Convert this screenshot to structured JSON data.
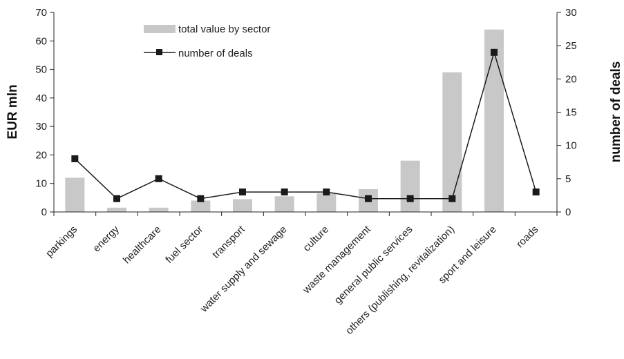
{
  "chart_data": {
    "type": "bar",
    "categories": [
      "parkings",
      "energy",
      "healthcare",
      "fuel sector",
      "transport",
      "water supply and sewage",
      "culture",
      "waste management",
      "general public services",
      "others (publishing, revitalization)",
      "sport and leisure",
      "roads"
    ],
    "series": [
      {
        "name": "total value by sector",
        "type": "bar",
        "axis": "left",
        "values": [
          12,
          1.5,
          1.5,
          4,
          4.5,
          5.5,
          6.5,
          8,
          18,
          49,
          64,
          0
        ]
      },
      {
        "name": "number of deals",
        "type": "line",
        "axis": "right",
        "values": [
          8,
          2,
          5,
          2,
          3,
          3,
          3,
          2,
          2,
          2,
          24,
          3
        ]
      }
    ],
    "ylabel": "EUR mln",
    "y2label": "number of deals",
    "ylim": [
      0,
      70
    ],
    "y2lim": [
      0,
      30
    ],
    "yticks": [
      "0",
      "10",
      "20",
      "30",
      "40",
      "50",
      "60",
      "70"
    ],
    "y2ticks": [
      "0",
      "5",
      "10",
      "15",
      "20",
      "25",
      "30"
    ],
    "legend": [
      "total value by sector",
      "number of deals"
    ],
    "legend_position": "top-left",
    "grid": false,
    "colors": {
      "bar": "#c8c8c8",
      "line": "#1a1a1a",
      "axis": "#222222"
    }
  }
}
